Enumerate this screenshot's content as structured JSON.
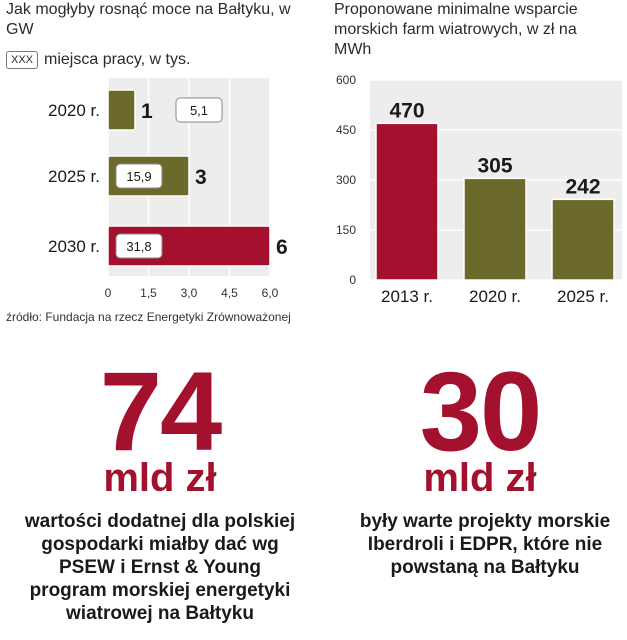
{
  "chart_data": [
    {
      "type": "bar",
      "orientation": "horizontal",
      "title": "Jak mogłyby rosnąć moce na Bałtyku, w GW",
      "jobs_legend_key": "XXX",
      "jobs_legend_label": "miejsca pracy, w tys.",
      "categories": [
        "2020 r.",
        "2025 r.",
        "2030 r."
      ],
      "values": [
        1,
        3,
        6
      ],
      "value_labels": [
        "1",
        "3",
        "6"
      ],
      "jobs": [
        "5,1",
        "15,9",
        "31,8"
      ],
      "xlim": [
        0,
        6.0
      ],
      "xticks": [
        "0",
        "1,5",
        "3,0",
        "4,5",
        "6,0"
      ],
      "grid": true,
      "bar_colors": [
        "#6b6a2a",
        "#6b6a2a",
        "#a3112e"
      ]
    },
    {
      "type": "bar",
      "title": "Proponowane minimalne wsparcie morskich farm wiatrowych, w zł na MWh",
      "categories": [
        "2013 r.",
        "2020 r.",
        "2025 r."
      ],
      "values": [
        470,
        305,
        242
      ],
      "ylim": [
        0,
        600
      ],
      "yticks": [
        "0",
        "150",
        "300",
        "450",
        "600"
      ],
      "grid": true,
      "bar_colors": [
        "#a3112e",
        "#6b6a2a",
        "#6b6a2a"
      ]
    }
  ],
  "source": "źródło: Fundacja na rzecz Energetyki Zrównoważonej",
  "facts": [
    {
      "number": "74",
      "unit": "mld zł",
      "text": "wartości dodatnej dla polskiej gospodarki miałby dać wg PSEW i Ernst & Young program morskiej energetyki wiatrowej na Bałtyku"
    },
    {
      "number": "30",
      "unit": "mld zł",
      "text": "były warte projekty morskie Iberdroli i EDPR, które nie powstaną na Bałtyku"
    }
  ],
  "colors": {
    "accent": "#a3112e",
    "olive": "#6b6a2a",
    "panel": "#ededed"
  }
}
